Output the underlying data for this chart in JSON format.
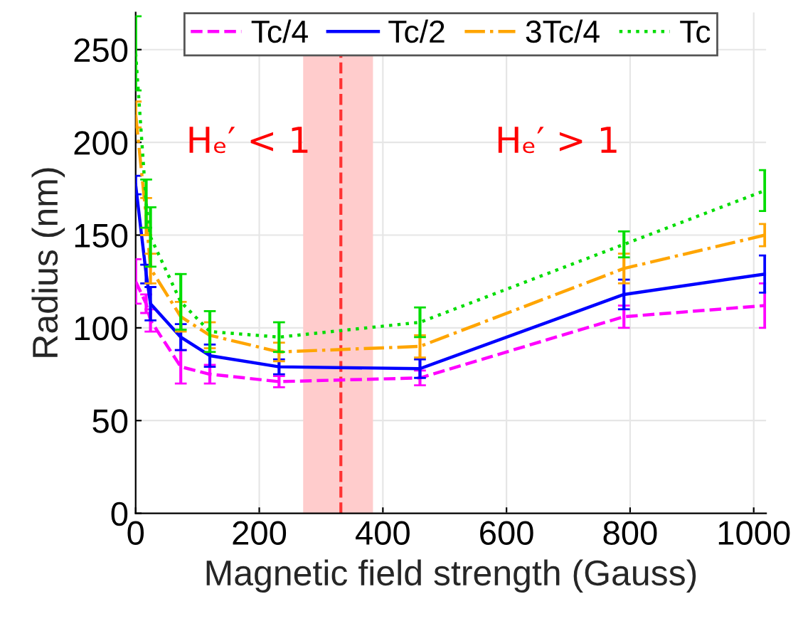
{
  "chart_data": {
    "type": "line",
    "xlabel": "Magnetic field strength (Gauss)",
    "ylabel": "Radius (nm)",
    "x": [
      0,
      17,
      24,
      73,
      120,
      232,
      460,
      790,
      1018
    ],
    "series": [
      {
        "name": "Tc/4",
        "color": "#ff00ff",
        "line_style": "dashed",
        "values": [
          125,
          113,
          104,
          79,
          75,
          71,
          73,
          106,
          112
        ],
        "errors": [
          12,
          5,
          6,
          9,
          5,
          3,
          4,
          6,
          12
        ]
      },
      {
        "name": "Tc/2",
        "color": "#0000ff",
        "line_style": "solid",
        "values": [
          177,
          129,
          113,
          95,
          85,
          79,
          78,
          118,
          129
        ],
        "errors": [
          5,
          5,
          9,
          7,
          6,
          4,
          5,
          8,
          10
        ]
      },
      {
        "name": "3Tc/4",
        "color": "#ffa500",
        "line_style": "dashdot",
        "values": [
          215,
          160,
          132,
          106,
          96,
          87,
          90,
          132,
          150
        ],
        "errors": [
          7,
          10,
          8,
          8,
          7,
          5,
          6,
          8,
          6
        ]
      },
      {
        "name": "Tc",
        "color": "#00dd00",
        "line_style": "dotted",
        "values": [
          248,
          167,
          149,
          114,
          98,
          95,
          103,
          145,
          174
        ],
        "errors": [
          20,
          13,
          16,
          15,
          11,
          8,
          8,
          7,
          11
        ]
      }
    ],
    "xlim": [
      0,
      1020
    ],
    "ylim": [
      0,
      270
    ],
    "xticks": [
      0,
      200,
      400,
      600,
      800,
      1000
    ],
    "yticks": [
      0,
      50,
      100,
      150,
      200,
      250
    ],
    "ref_lines": [
      {
        "axis": "x",
        "value": 332,
        "color": "#ff3333",
        "line_style": "dashed"
      }
    ],
    "bands": [
      {
        "axis": "x",
        "from": 271,
        "to": 384,
        "color": "#ffcccc"
      }
    ],
    "annotations": [
      "Hₑ′ < 1",
      "Hₑ′ > 1"
    ],
    "grid": true,
    "legend": "top",
    "marker": "none"
  }
}
